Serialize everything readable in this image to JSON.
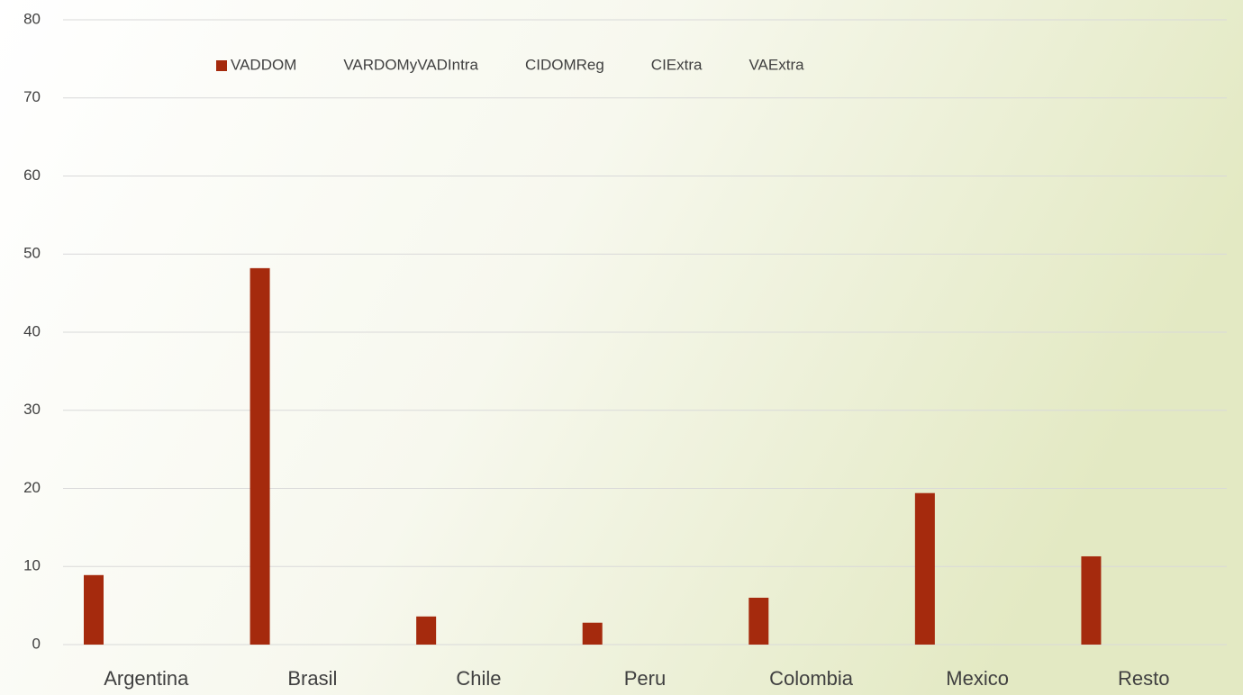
{
  "chart_data": {
    "type": "bar",
    "categories": [
      "Argentina",
      "Brasil",
      "Chile",
      "Peru",
      "Colombia",
      "Mexico",
      "Resto"
    ],
    "series": [
      {
        "name": "VADDOM",
        "color": "#a52a0d",
        "values": [
          8.9,
          48.2,
          3.6,
          2.8,
          6.0,
          19.4,
          11.3
        ]
      },
      {
        "name": "VARDOMyVADIntra",
        "values": [
          null,
          null,
          null,
          null,
          null,
          null,
          null
        ]
      },
      {
        "name": "CIDOMReg",
        "values": [
          null,
          null,
          null,
          null,
          null,
          null,
          null
        ]
      },
      {
        "name": "CIExtra",
        "values": [
          null,
          null,
          null,
          null,
          null,
          null,
          null
        ]
      },
      {
        "name": "VAExtra",
        "values": [
          null,
          null,
          null,
          null,
          null,
          null,
          null
        ]
      }
    ],
    "ylim": [
      0,
      80
    ],
    "yticks": [
      0,
      10,
      20,
      30,
      40,
      50,
      60,
      70,
      80
    ],
    "grid": true,
    "legend": "top"
  }
}
